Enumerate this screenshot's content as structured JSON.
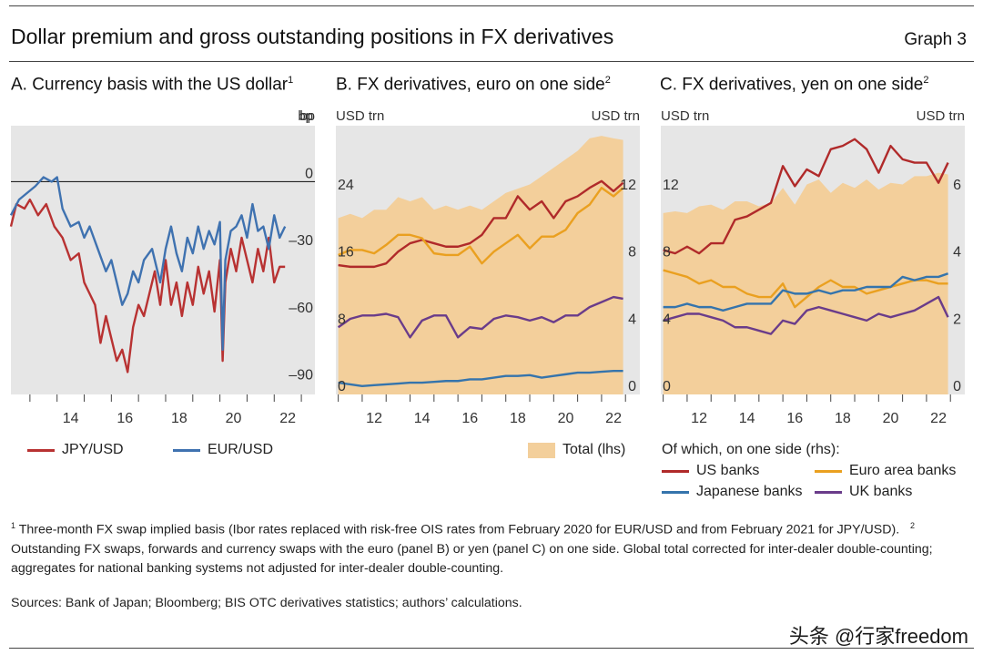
{
  "header": {
    "title": "Dollar premium and gross outstanding positions in FX derivatives",
    "graph_label": "Graph 3"
  },
  "colors": {
    "jpy": "#b83232",
    "eur": "#3f72b0",
    "total": "#f3cf9b",
    "us": "#b02a2a",
    "euro_area": "#eaa020",
    "japanese": "#3574ac",
    "uk": "#6a3c8a",
    "panel_bg": "#e6e6e6"
  },
  "chart_data": [
    {
      "id": "A",
      "type": "line",
      "title": "A. Currency basis with the US dollar",
      "title_sup": "1",
      "unit_right": "bp",
      "ylim": [
        -95,
        25
      ],
      "yticks": [
        0,
        -30,
        -60,
        -90
      ],
      "xlim": [
        2012.3,
        2023.5
      ],
      "xticks": [
        14,
        16,
        18,
        20,
        22
      ],
      "reference_line": 0,
      "series": [
        {
          "name": "JPY/USD",
          "x": [
            2012.3,
            2012.5,
            2012.8,
            2013.0,
            2013.3,
            2013.6,
            2013.9,
            2014.2,
            2014.5,
            2014.8,
            2015.0,
            2015.2,
            2015.4,
            2015.6,
            2015.8,
            2016.0,
            2016.2,
            2016.4,
            2016.6,
            2016.8,
            2017.0,
            2017.2,
            2017.4,
            2017.6,
            2017.8,
            2018.0,
            2018.2,
            2018.4,
            2018.6,
            2018.8,
            2019.0,
            2019.2,
            2019.4,
            2019.6,
            2019.8,
            2020.0,
            2020.1,
            2020.2,
            2020.4,
            2020.6,
            2020.8,
            2021.0,
            2021.2,
            2021.4,
            2021.6,
            2021.8,
            2022.0,
            2022.2,
            2022.4
          ],
          "y": [
            -20,
            -10,
            -12,
            -8,
            -15,
            -10,
            -20,
            -25,
            -35,
            -32,
            -45,
            -50,
            -55,
            -72,
            -60,
            -70,
            -80,
            -75,
            -85,
            -65,
            -55,
            -60,
            -50,
            -40,
            -55,
            -35,
            -55,
            -45,
            -60,
            -45,
            -55,
            -38,
            -50,
            -40,
            -58,
            -35,
            -80,
            -45,
            -30,
            -40,
            -25,
            -35,
            -45,
            -30,
            -40,
            -25,
            -45,
            -38,
            -38
          ]
        },
        {
          "name": "EUR/USD",
          "x": [
            2012.3,
            2012.6,
            2012.9,
            2013.2,
            2013.5,
            2013.8,
            2014.0,
            2014.2,
            2014.5,
            2014.8,
            2015.0,
            2015.2,
            2015.5,
            2015.8,
            2016.0,
            2016.2,
            2016.4,
            2016.6,
            2016.8,
            2017.0,
            2017.2,
            2017.5,
            2017.8,
            2018.0,
            2018.2,
            2018.4,
            2018.6,
            2018.8,
            2019.0,
            2019.2,
            2019.4,
            2019.6,
            2019.8,
            2020.0,
            2020.1,
            2020.2,
            2020.4,
            2020.6,
            2020.8,
            2021.0,
            2021.2,
            2021.4,
            2021.6,
            2021.8,
            2022.0,
            2022.2,
            2022.4
          ],
          "y": [
            -15,
            -8,
            -5,
            -2,
            2,
            0,
            2,
            -12,
            -20,
            -18,
            -25,
            -20,
            -30,
            -40,
            -35,
            -45,
            -55,
            -50,
            -40,
            -45,
            -35,
            -30,
            -45,
            -30,
            -20,
            -32,
            -40,
            -25,
            -32,
            -20,
            -30,
            -22,
            -28,
            -18,
            -75,
            -35,
            -22,
            -20,
            -15,
            -25,
            -10,
            -22,
            -20,
            -30,
            -15,
            -25,
            -20
          ]
        }
      ]
    },
    {
      "id": "B",
      "type": "line",
      "title": "B. FX derivatives, euro on one side",
      "title_sup": "2",
      "unit_left": "USD trn",
      "unit_right": "USD trn",
      "ylim_left": [
        0,
        32
      ],
      "yticks_left": [
        0,
        8,
        16,
        24
      ],
      "ylim_right": [
        0,
        16
      ],
      "yticks_right": [
        0,
        4,
        8,
        12
      ],
      "xlim": [
        2010.9,
        2023.6
      ],
      "xticks": [
        12,
        14,
        16,
        18,
        20,
        22
      ],
      "area": {
        "name": "Total (lhs)",
        "axis": "left",
        "x": [
          2011.0,
          2011.5,
          2012.0,
          2012.5,
          2013.0,
          2013.5,
          2014.0,
          2014.5,
          2015.0,
          2015.5,
          2016.0,
          2016.5,
          2017.0,
          2017.5,
          2018.0,
          2018.5,
          2019.0,
          2019.5,
          2020.0,
          2020.5,
          2021.0,
          2021.5,
          2022.0,
          2022.5,
          2022.9
        ],
        "y": [
          21,
          21.5,
          21,
          22,
          22,
          23.5,
          23,
          23.5,
          22,
          22.5,
          22,
          22.5,
          22,
          23,
          24,
          24.5,
          25,
          26,
          27,
          28,
          29,
          30.5,
          30.8,
          30.5,
          30.3
        ]
      },
      "series": [
        {
          "name": "US banks",
          "axis": "right",
          "x": [
            2011,
            2011.5,
            2012,
            2012.5,
            2013,
            2013.5,
            2014,
            2014.5,
            2015,
            2015.5,
            2016,
            2016.5,
            2017,
            2017.5,
            2018,
            2018.5,
            2019,
            2019.5,
            2020,
            2020.5,
            2021,
            2021.5,
            2022,
            2022.5,
            2022.9
          ],
          "y": [
            7.7,
            7.6,
            7.6,
            7.6,
            7.8,
            8.5,
            9.0,
            9.2,
            9.0,
            8.8,
            8.8,
            9.0,
            9.5,
            10.5,
            10.5,
            11.8,
            11,
            11.5,
            10.5,
            11.5,
            11.8,
            12.3,
            12.7,
            12.1,
            12.6
          ]
        },
        {
          "name": "Euro area banks",
          "axis": "right",
          "x": [
            2011,
            2011.5,
            2012,
            2012.5,
            2013,
            2013.5,
            2014,
            2014.5,
            2015,
            2015.5,
            2016,
            2016.5,
            2017,
            2017.5,
            2018,
            2018.5,
            2019,
            2019.5,
            2020,
            2020.5,
            2021,
            2021.5,
            2022,
            2022.5,
            2022.9
          ],
          "y": [
            8.3,
            8.6,
            8.6,
            8.4,
            8.9,
            9.5,
            9.5,
            9.3,
            8.4,
            8.3,
            8.3,
            8.8,
            7.8,
            8.5,
            9.0,
            9.5,
            8.7,
            9.4,
            9.4,
            9.8,
            10.8,
            11.3,
            12.3,
            11.8,
            12.3
          ]
        },
        {
          "name": "UK banks",
          "axis": "right",
          "x": [
            2011,
            2011.5,
            2012,
            2012.5,
            2013,
            2013.5,
            2014,
            2014.5,
            2015,
            2015.5,
            2016,
            2016.5,
            2017,
            2017.5,
            2018,
            2018.5,
            2019,
            2019.5,
            2020,
            2020.5,
            2021,
            2021.5,
            2022,
            2022.5,
            2022.9
          ],
          "y": [
            4.0,
            4.5,
            4.7,
            4.7,
            4.8,
            4.6,
            3.4,
            4.4,
            4.7,
            4.7,
            3.4,
            4.0,
            3.9,
            4.5,
            4.7,
            4.6,
            4.4,
            4.6,
            4.3,
            4.7,
            4.7,
            5.2,
            5.5,
            5.8,
            5.7
          ]
        },
        {
          "name": "Japanese banks",
          "axis": "right",
          "x": [
            2011,
            2011.5,
            2012,
            2012.5,
            2013,
            2013.5,
            2014,
            2014.5,
            2015,
            2015.5,
            2016,
            2016.5,
            2017,
            2017.5,
            2018,
            2018.5,
            2019,
            2019.5,
            2020,
            2020.5,
            2021,
            2021.5,
            2022,
            2022.5,
            2022.9
          ],
          "y": [
            0.7,
            0.6,
            0.5,
            0.55,
            0.6,
            0.65,
            0.7,
            0.7,
            0.75,
            0.8,
            0.8,
            0.9,
            0.9,
            1.0,
            1.1,
            1.1,
            1.15,
            1.0,
            1.1,
            1.2,
            1.3,
            1.3,
            1.35,
            1.4,
            1.4
          ]
        }
      ]
    },
    {
      "id": "C",
      "type": "line",
      "title": "C. FX derivatives, yen on one side",
      "title_sup": "2",
      "unit_left": "USD trn",
      "unit_right": "USD trn",
      "ylim_left": [
        0,
        16
      ],
      "yticks_left": [
        0,
        4,
        8,
        12
      ],
      "ylim_right": [
        0,
        8
      ],
      "yticks_right": [
        0,
        2,
        4,
        6
      ],
      "xlim": [
        2010.9,
        2023.6
      ],
      "xticks": [
        12,
        14,
        16,
        18,
        20,
        22
      ],
      "area": {
        "name": "Total (lhs)",
        "axis": "left",
        "x": [
          2011.0,
          2011.5,
          2012.0,
          2012.5,
          2013.0,
          2013.5,
          2014.0,
          2014.5,
          2015.0,
          2015.5,
          2016.0,
          2016.5,
          2017.0,
          2017.5,
          2018.0,
          2018.5,
          2019.0,
          2019.5,
          2020.0,
          2020.5,
          2021.0,
          2021.5,
          2022.0,
          2022.5,
          2022.9
        ],
        "y": [
          10.8,
          10.9,
          10.8,
          11.2,
          11.3,
          11.0,
          11.5,
          11.5,
          11.2,
          11.4,
          12.3,
          11.3,
          12.5,
          12.8,
          12.0,
          12.6,
          12.3,
          12.8,
          12.2,
          12.6,
          12.5,
          13.0,
          13.0,
          13.2,
          13.1
        ]
      },
      "series": [
        {
          "name": "US banks",
          "axis": "right",
          "x": [
            2011,
            2011.5,
            2012,
            2012.5,
            2013,
            2013.5,
            2014,
            2014.5,
            2015,
            2015.5,
            2016,
            2016.5,
            2017,
            2017.5,
            2018,
            2018.5,
            2019,
            2019.5,
            2020,
            2020.5,
            2021,
            2021.5,
            2022,
            2022.5,
            2022.9
          ],
          "y": [
            4.3,
            4.2,
            4.4,
            4.2,
            4.5,
            4.5,
            5.2,
            5.3,
            5.5,
            5.7,
            6.8,
            6.2,
            6.7,
            6.5,
            7.3,
            7.4,
            7.6,
            7.3,
            6.6,
            7.4,
            7.0,
            6.9,
            6.9,
            6.3,
            6.9
          ]
        },
        {
          "name": "Euro area banks",
          "axis": "right",
          "x": [
            2011,
            2011.5,
            2012,
            2012.5,
            2013,
            2013.5,
            2014,
            2014.5,
            2015,
            2015.5,
            2016,
            2016.5,
            2017,
            2017.5,
            2018,
            2018.5,
            2019,
            2019.5,
            2020,
            2020.5,
            2021,
            2021.5,
            2022,
            2022.5,
            2022.9
          ],
          "y": [
            3.7,
            3.6,
            3.5,
            3.3,
            3.4,
            3.2,
            3.2,
            3.0,
            2.9,
            2.9,
            3.3,
            2.6,
            2.9,
            3.2,
            3.4,
            3.2,
            3.2,
            3.0,
            3.1,
            3.2,
            3.3,
            3.4,
            3.4,
            3.3,
            3.3
          ]
        },
        {
          "name": "Japanese banks",
          "axis": "right",
          "x": [
            2011,
            2011.5,
            2012,
            2012.5,
            2013,
            2013.5,
            2014,
            2014.5,
            2015,
            2015.5,
            2016,
            2016.5,
            2017,
            2017.5,
            2018,
            2018.5,
            2019,
            2019.5,
            2020,
            2020.5,
            2021,
            2021.5,
            2022,
            2022.5,
            2022.9
          ],
          "y": [
            2.6,
            2.6,
            2.7,
            2.6,
            2.6,
            2.5,
            2.6,
            2.7,
            2.7,
            2.7,
            3.1,
            3.0,
            3.0,
            3.1,
            3.0,
            3.1,
            3.1,
            3.2,
            3.2,
            3.2,
            3.5,
            3.4,
            3.5,
            3.5,
            3.6
          ]
        },
        {
          "name": "UK banks",
          "axis": "right",
          "x": [
            2011,
            2011.5,
            2012,
            2012.5,
            2013,
            2013.5,
            2014,
            2014.5,
            2015,
            2015.5,
            2016,
            2016.5,
            2017,
            2017.5,
            2018,
            2018.5,
            2019,
            2019.5,
            2020,
            2020.5,
            2021,
            2021.5,
            2022,
            2022.5,
            2022.9
          ],
          "y": [
            2.2,
            2.3,
            2.4,
            2.4,
            2.3,
            2.2,
            2.0,
            2.0,
            1.9,
            1.8,
            2.2,
            2.1,
            2.5,
            2.6,
            2.5,
            2.4,
            2.3,
            2.2,
            2.4,
            2.3,
            2.4,
            2.5,
            2.7,
            2.9,
            2.3
          ]
        }
      ]
    }
  ],
  "legends": {
    "a": [
      {
        "label": "JPY/USD",
        "color": "#b83232"
      },
      {
        "label": "EUR/USD",
        "color": "#3f72b0"
      }
    ],
    "b_total": "Total (lhs)",
    "c_header": "Of which, on one side (rhs):",
    "c": [
      {
        "label": "US banks"
      },
      {
        "label": "Euro area banks"
      },
      {
        "label": "Japanese banks"
      },
      {
        "label": "UK banks"
      }
    ]
  },
  "notes": {
    "note1_sup": "1",
    "note1": "Three-month FX swap implied basis (Ibor rates replaced with risk-free OIS rates from February 2020 for EUR/USD and from February 2021 for JPY/USD).",
    "note2_sup": "2",
    "note2": "Outstanding FX swaps, forwards and currency swaps with the euro (panel B) or yen (panel C) on one side. Global total corrected for inter-dealer double-counting; aggregates for national banking systems not adjusted for inter-dealer double-counting.",
    "sources": "Sources: Bank of Japan; Bloomberg; BIS OTC derivatives statistics; authors’ calculations."
  },
  "watermark": "头条 @行家freedom"
}
